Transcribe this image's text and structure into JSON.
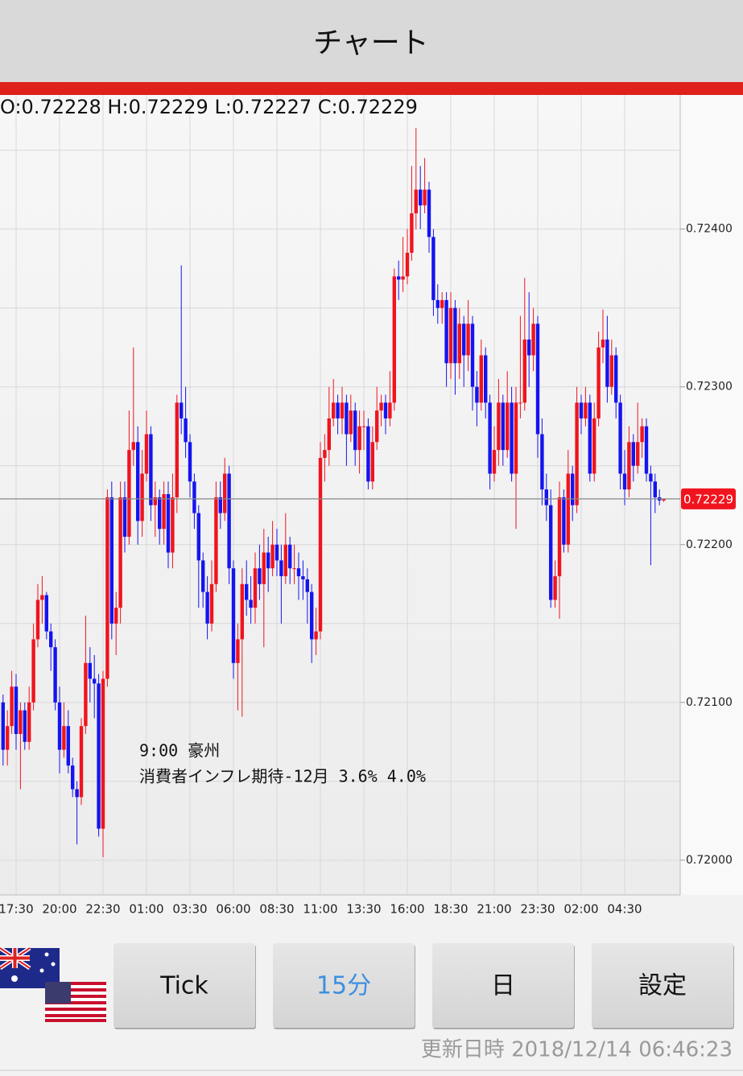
{
  "header": {
    "title": "チャート"
  },
  "chart_data": {
    "type": "candlestick",
    "ohlc_label": "O:0.72228 H:0.72229 L:0.72227 C:0.72229",
    "categories": [
      null,
      null,
      null,
      "17:30",
      null,
      null,
      null,
      null,
      null,
      null,
      null,
      null,
      null,
      "20:00",
      null,
      null,
      null,
      null,
      null,
      null,
      null,
      null,
      null,
      "22:30",
      null,
      null,
      null,
      null,
      null,
      null,
      null,
      null,
      null,
      "01:00",
      null,
      null,
      null,
      null,
      null,
      null,
      null,
      null,
      null,
      "03:30",
      null,
      null,
      null,
      null,
      null,
      null,
      null,
      null,
      null,
      "06:00",
      null,
      null,
      null,
      null,
      null,
      null,
      null,
      null,
      null,
      "08:30",
      null,
      null,
      null,
      null,
      null,
      null,
      null,
      null,
      null,
      "11:00",
      null,
      null,
      null,
      null,
      null,
      null,
      null,
      null,
      null,
      "13:30",
      null,
      null,
      null,
      null,
      null,
      null,
      null,
      null,
      null,
      "16:00",
      null,
      null,
      null,
      null,
      null,
      null,
      null,
      null,
      null,
      "18:30",
      null,
      null,
      null,
      null,
      null,
      null,
      null,
      null,
      null,
      "21:00",
      null,
      null,
      null,
      null,
      null,
      null,
      null,
      null,
      null,
      "23:30",
      null,
      null,
      null,
      null,
      null,
      null,
      null,
      null,
      null,
      "02:00",
      null,
      null,
      null,
      null,
      null,
      null,
      null,
      null,
      null,
      "04:30",
      null,
      null,
      null,
      null,
      null,
      null,
      null,
      null,
      null
    ],
    "ohlc": [
      [
        0.721,
        0.72105,
        0.7206,
        0.7207
      ],
      [
        0.7207,
        0.72095,
        0.7206,
        0.72085
      ],
      [
        0.72085,
        0.7212,
        0.7208,
        0.7211
      ],
      [
        0.7211,
        0.72118,
        0.7207,
        0.7208
      ],
      [
        0.7208,
        0.721,
        0.72045,
        0.72095
      ],
      [
        0.72095,
        0.721,
        0.7207,
        0.72075
      ],
      [
        0.72075,
        0.7211,
        0.7207,
        0.721
      ],
      [
        0.721,
        0.7215,
        0.72095,
        0.7214
      ],
      [
        0.7214,
        0.72175,
        0.72135,
        0.72165
      ],
      [
        0.72165,
        0.7218,
        0.7215,
        0.72168
      ],
      [
        0.72168,
        0.7217,
        0.7214,
        0.72145
      ],
      [
        0.72145,
        0.7215,
        0.7212,
        0.72135
      ],
      [
        0.72135,
        0.7214,
        0.72095,
        0.721
      ],
      [
        0.721,
        0.7211,
        0.72055,
        0.7207
      ],
      [
        0.7207,
        0.721,
        0.72065,
        0.72085
      ],
      [
        0.72085,
        0.72095,
        0.72055,
        0.7206
      ],
      [
        0.7206,
        0.72065,
        0.7204,
        0.72045
      ],
      [
        0.72045,
        0.7205,
        0.7201,
        0.7204
      ],
      [
        0.7204,
        0.7209,
        0.72035,
        0.72085
      ],
      [
        0.72085,
        0.72155,
        0.7208,
        0.72125
      ],
      [
        0.72125,
        0.72135,
        0.721,
        0.72115
      ],
      [
        0.72115,
        0.7213,
        0.7209,
        0.72112
      ],
      [
        0.72112,
        0.72118,
        0.72015,
        0.7202
      ],
      [
        0.7202,
        0.7212,
        0.72002,
        0.72115
      ],
      [
        0.72115,
        0.72235,
        0.7211,
        0.7223
      ],
      [
        0.7223,
        0.7224,
        0.7214,
        0.7215
      ],
      [
        0.7215,
        0.7217,
        0.7213,
        0.7216
      ],
      [
        0.7216,
        0.7224,
        0.7215,
        0.7223
      ],
      [
        0.7223,
        0.7224,
        0.72195,
        0.72205
      ],
      [
        0.72205,
        0.72285,
        0.722,
        0.7226
      ],
      [
        0.7226,
        0.72325,
        0.7225,
        0.72265
      ],
      [
        0.72265,
        0.72275,
        0.722,
        0.72215
      ],
      [
        0.72215,
        0.7226,
        0.72205,
        0.72245
      ],
      [
        0.72245,
        0.72285,
        0.7224,
        0.7227
      ],
      [
        0.7227,
        0.72275,
        0.72215,
        0.72225
      ],
      [
        0.72225,
        0.7224,
        0.72205,
        0.7223
      ],
      [
        0.7223,
        0.72235,
        0.722,
        0.7221
      ],
      [
        0.7221,
        0.7224,
        0.722,
        0.72232
      ],
      [
        0.72232,
        0.7224,
        0.72185,
        0.72195
      ],
      [
        0.72195,
        0.72245,
        0.72185,
        0.7223
      ],
      [
        0.7223,
        0.72295,
        0.7222,
        0.7229
      ],
      [
        0.7229,
        0.72377,
        0.7227,
        0.7228
      ],
      [
        0.7228,
        0.723,
        0.72255,
        0.72265
      ],
      [
        0.72265,
        0.7227,
        0.7223,
        0.7224
      ],
      [
        0.7224,
        0.72245,
        0.7221,
        0.7222
      ],
      [
        0.7222,
        0.72225,
        0.7216,
        0.7219
      ],
      [
        0.7219,
        0.72195,
        0.7216,
        0.7217
      ],
      [
        0.7217,
        0.7218,
        0.7214,
        0.7215
      ],
      [
        0.7215,
        0.7219,
        0.72145,
        0.72175
      ],
      [
        0.72175,
        0.7224,
        0.7217,
        0.7223
      ],
      [
        0.7223,
        0.7224,
        0.7221,
        0.7222
      ],
      [
        0.7222,
        0.72255,
        0.72215,
        0.72245
      ],
      [
        0.72245,
        0.7225,
        0.72175,
        0.72185
      ],
      [
        0.72185,
        0.7219,
        0.72115,
        0.72125
      ],
      [
        0.72125,
        0.7215,
        0.72095,
        0.7214
      ],
      [
        0.7214,
        0.72185,
        0.72091,
        0.72175
      ],
      [
        0.72175,
        0.7219,
        0.72155,
        0.72165
      ],
      [
        0.72165,
        0.7218,
        0.7215,
        0.7216
      ],
      [
        0.7216,
        0.72195,
        0.7215,
        0.72185
      ],
      [
        0.72185,
        0.722,
        0.72165,
        0.72175
      ],
      [
        0.72175,
        0.7221,
        0.72135,
        0.72195
      ],
      [
        0.72195,
        0.72205,
        0.7217,
        0.72185
      ],
      [
        0.72185,
        0.72215,
        0.7218,
        0.722
      ],
      [
        0.722,
        0.7221,
        0.7218,
        0.7219
      ],
      [
        0.7219,
        0.722,
        0.7215,
        0.7218
      ],
      [
        0.7218,
        0.7222,
        0.72175,
        0.722
      ],
      [
        0.722,
        0.72205,
        0.72175,
        0.72185
      ],
      [
        0.72185,
        0.722,
        0.72175,
        0.72185
      ],
      [
        0.72185,
        0.72195,
        0.72165,
        0.7218
      ],
      [
        0.7218,
        0.7219,
        0.72165,
        0.72178
      ],
      [
        0.72178,
        0.72185,
        0.7215,
        0.7217
      ],
      [
        0.7217,
        0.72175,
        0.72125,
        0.7214
      ],
      [
        0.7214,
        0.7216,
        0.7213,
        0.72145
      ],
      [
        0.72145,
        0.72265,
        0.7214,
        0.72255
      ],
      [
        0.72255,
        0.7227,
        0.7224,
        0.7226
      ],
      [
        0.7226,
        0.723,
        0.7225,
        0.7228
      ],
      [
        0.7228,
        0.72305,
        0.72275,
        0.7229
      ],
      [
        0.7229,
        0.72295,
        0.7227,
        0.7228
      ],
      [
        0.7228,
        0.723,
        0.7227,
        0.7229
      ],
      [
        0.7229,
        0.72295,
        0.7225,
        0.7227
      ],
      [
        0.7227,
        0.72295,
        0.72265,
        0.72285
      ],
      [
        0.72285,
        0.7229,
        0.7225,
        0.7226
      ],
      [
        0.7226,
        0.72285,
        0.72245,
        0.72275
      ],
      [
        0.72275,
        0.72285,
        0.7226,
        0.72275
      ],
      [
        0.72275,
        0.7228,
        0.72235,
        0.7224
      ],
      [
        0.7224,
        0.72275,
        0.72235,
        0.72265
      ],
      [
        0.72265,
        0.723,
        0.7226,
        0.72285
      ],
      [
        0.72285,
        0.72295,
        0.72275,
        0.7229
      ],
      [
        0.7229,
        0.72295,
        0.7227,
        0.7228
      ],
      [
        0.7228,
        0.7231,
        0.72275,
        0.7229
      ],
      [
        0.7229,
        0.72375,
        0.72285,
        0.7237
      ],
      [
        0.7237,
        0.7238,
        0.72355,
        0.72368
      ],
      [
        0.72368,
        0.72395,
        0.7236,
        0.7237
      ],
      [
        0.7237,
        0.724,
        0.72365,
        0.72385
      ],
      [
        0.72385,
        0.7244,
        0.7238,
        0.7241
      ],
      [
        0.7241,
        0.72464,
        0.724,
        0.72425
      ],
      [
        0.72425,
        0.7244,
        0.724,
        0.72415
      ],
      [
        0.72415,
        0.72445,
        0.7241,
        0.72425
      ],
      [
        0.72425,
        0.7243,
        0.72385,
        0.72395
      ],
      [
        0.72395,
        0.724,
        0.72345,
        0.72355
      ],
      [
        0.72355,
        0.72365,
        0.7234,
        0.7235
      ],
      [
        0.7235,
        0.7236,
        0.7234,
        0.72355
      ],
      [
        0.72355,
        0.7236,
        0.723,
        0.72315
      ],
      [
        0.72315,
        0.7236,
        0.72305,
        0.7235
      ],
      [
        0.7235,
        0.72355,
        0.72295,
        0.72315
      ],
      [
        0.72315,
        0.7235,
        0.72305,
        0.7234
      ],
      [
        0.7234,
        0.72345,
        0.723,
        0.7232
      ],
      [
        0.7232,
        0.72355,
        0.7231,
        0.7234
      ],
      [
        0.7234,
        0.72345,
        0.72285,
        0.723
      ],
      [
        0.723,
        0.7231,
        0.72275,
        0.7229
      ],
      [
        0.7229,
        0.7233,
        0.72285,
        0.7232
      ],
      [
        0.7232,
        0.72325,
        0.7228,
        0.7229
      ],
      [
        0.7229,
        0.72295,
        0.72235,
        0.72245
      ],
      [
        0.72245,
        0.72275,
        0.7224,
        0.7226
      ],
      [
        0.7226,
        0.72305,
        0.7225,
        0.7229
      ],
      [
        0.7229,
        0.72295,
        0.7225,
        0.7226
      ],
      [
        0.7226,
        0.7231,
        0.72255,
        0.7229
      ],
      [
        0.7229,
        0.723,
        0.7224,
        0.72245
      ],
      [
        0.72245,
        0.723,
        0.7221,
        0.7229
      ],
      [
        0.7229,
        0.72345,
        0.7228,
        0.7229
      ],
      [
        0.7229,
        0.72369,
        0.72285,
        0.7233
      ],
      [
        0.7233,
        0.7236,
        0.723,
        0.7232
      ],
      [
        0.7232,
        0.7235,
        0.7231,
        0.7234
      ],
      [
        0.7234,
        0.72345,
        0.72255,
        0.7227
      ],
      [
        0.7227,
        0.7228,
        0.72225,
        0.72235
      ],
      [
        0.72235,
        0.72245,
        0.72215,
        0.72225
      ],
      [
        0.72225,
        0.72235,
        0.7216,
        0.72165
      ],
      [
        0.72165,
        0.7219,
        0.7216,
        0.7218
      ],
      [
        0.7218,
        0.7224,
        0.72153,
        0.7223
      ],
      [
        0.7223,
        0.72235,
        0.72195,
        0.722
      ],
      [
        0.722,
        0.7226,
        0.72195,
        0.72245
      ],
      [
        0.72245,
        0.7225,
        0.72215,
        0.72225
      ],
      [
        0.72225,
        0.723,
        0.7222,
        0.7229
      ],
      [
        0.7229,
        0.72295,
        0.7227,
        0.7228
      ],
      [
        0.7228,
        0.723,
        0.72275,
        0.7229
      ],
      [
        0.7229,
        0.72295,
        0.7224,
        0.72245
      ],
      [
        0.72245,
        0.7229,
        0.7224,
        0.7228
      ],
      [
        0.7228,
        0.72335,
        0.72275,
        0.72325
      ],
      [
        0.72325,
        0.72349,
        0.72315,
        0.7233
      ],
      [
        0.7233,
        0.72345,
        0.7229,
        0.723
      ],
      [
        0.723,
        0.7233,
        0.72295,
        0.7232
      ],
      [
        0.7232,
        0.72325,
        0.7228,
        0.7229
      ],
      [
        0.7229,
        0.72295,
        0.72235,
        0.72245
      ],
      [
        0.72245,
        0.7226,
        0.72225,
        0.72235
      ],
      [
        0.72235,
        0.72275,
        0.7223,
        0.72265
      ],
      [
        0.72265,
        0.7227,
        0.7224,
        0.7225
      ],
      [
        0.7225,
        0.7229,
        0.72245,
        0.72265
      ],
      [
        0.72265,
        0.7228,
        0.72255,
        0.72275
      ],
      [
        0.72275,
        0.7228,
        0.7224,
        0.72245
      ],
      [
        0.72245,
        0.7225,
        0.72187,
        0.7224
      ],
      [
        0.7224,
        0.72245,
        0.7222,
        0.7223
      ],
      [
        0.7223,
        0.72235,
        0.72225,
        0.72228
      ],
      [
        0.72228,
        0.72229,
        0.72227,
        0.72229
      ]
    ],
    "up_color": "#f0141e",
    "down_color": "#1414f0",
    "ylim": [
      0.71978,
      0.72485
    ],
    "yticks": [
      {
        "value": 0.72,
        "label": "0.72000"
      },
      {
        "value": 0.721,
        "label": "0.72100"
      },
      {
        "value": 0.722,
        "label": "0.72200"
      },
      {
        "value": 0.723,
        "label": "0.72300"
      },
      {
        "value": 0.724,
        "label": "0.72400"
      }
    ],
    "minor_yticks": [
      0.7205,
      0.7215,
      0.7225,
      0.7235,
      0.7245
    ],
    "grid": true,
    "current_price": {
      "value": 0.72229,
      "label": "0.72229"
    },
    "annotations": [
      "9:00 豪州",
      "消費者インフレ期待-12月 3.6% 4.0%"
    ]
  },
  "buttons": [
    "Tick",
    "15分",
    "日",
    "設定"
  ],
  "active_button": 1,
  "footer": "更新日時 2018/12/14 06:46:23"
}
